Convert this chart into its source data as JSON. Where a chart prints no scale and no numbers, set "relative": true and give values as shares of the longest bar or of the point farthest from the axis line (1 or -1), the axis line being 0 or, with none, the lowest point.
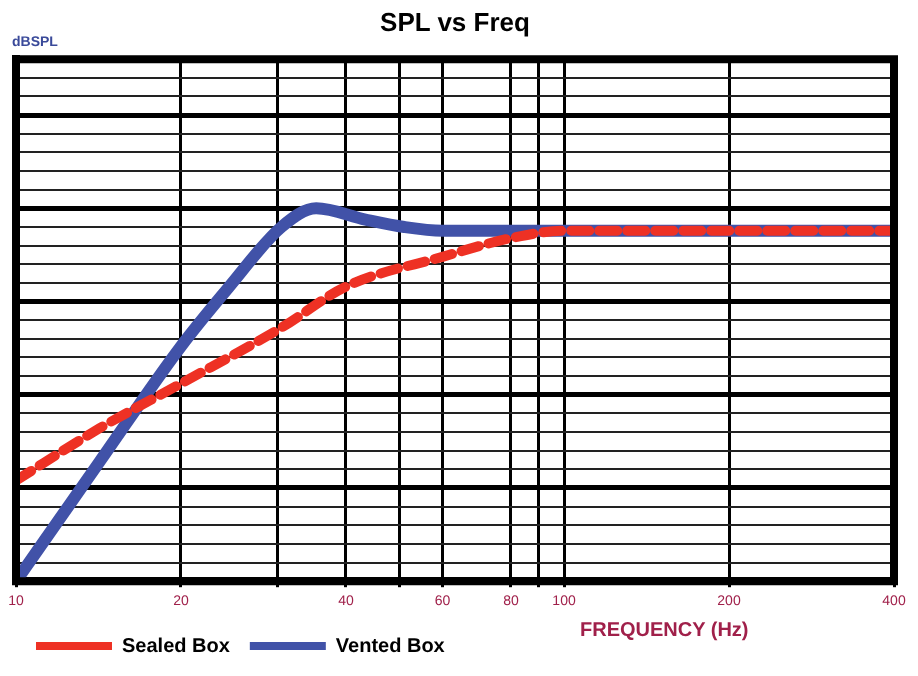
{
  "chart_data": {
    "type": "line",
    "title": "SPL vs Freq",
    "xlabel": "FREQUENCY (Hz)",
    "annotations": [
      "dBSPL"
    ],
    "relative": true,
    "log": "x",
    "grid": true,
    "legend": "bottom left",
    "marker": "none",
    "xlim": [
      10,
      400
    ],
    "xticks": [
      10,
      20,
      {
        "value": 30,
        "label": null
      },
      40,
      {
        "value": 50,
        "label": null
      },
      60,
      80,
      {
        "value": 90,
        "label": null
      },
      100,
      200,
      400
    ],
    "series": [
      {
        "name": "Sealed Box",
        "color": "#ee3124",
        "line_style": "dashed",
        "x": [
          10,
          14.2,
          20,
          30.5,
          40,
          60,
          80,
          100,
          400
        ],
        "values": [
          0.27,
          0.41,
          0.53,
          0.68,
          0.79,
          0.87,
          0.92,
          0.94,
          0.94
        ]
      },
      {
        "name": "Vented Box",
        "color": "#4152a8",
        "line_style": "solid",
        "x": [
          10,
          14.2,
          20,
          24.5,
          30.5,
          35.3,
          43.4,
          51.1,
          60,
          100,
          400
        ],
        "values": [
          0,
          0.32,
          0.63,
          0.79,
          0.95,
          1,
          0.97,
          0.95,
          0.94,
          0.94,
          0.94
        ]
      }
    ]
  }
}
